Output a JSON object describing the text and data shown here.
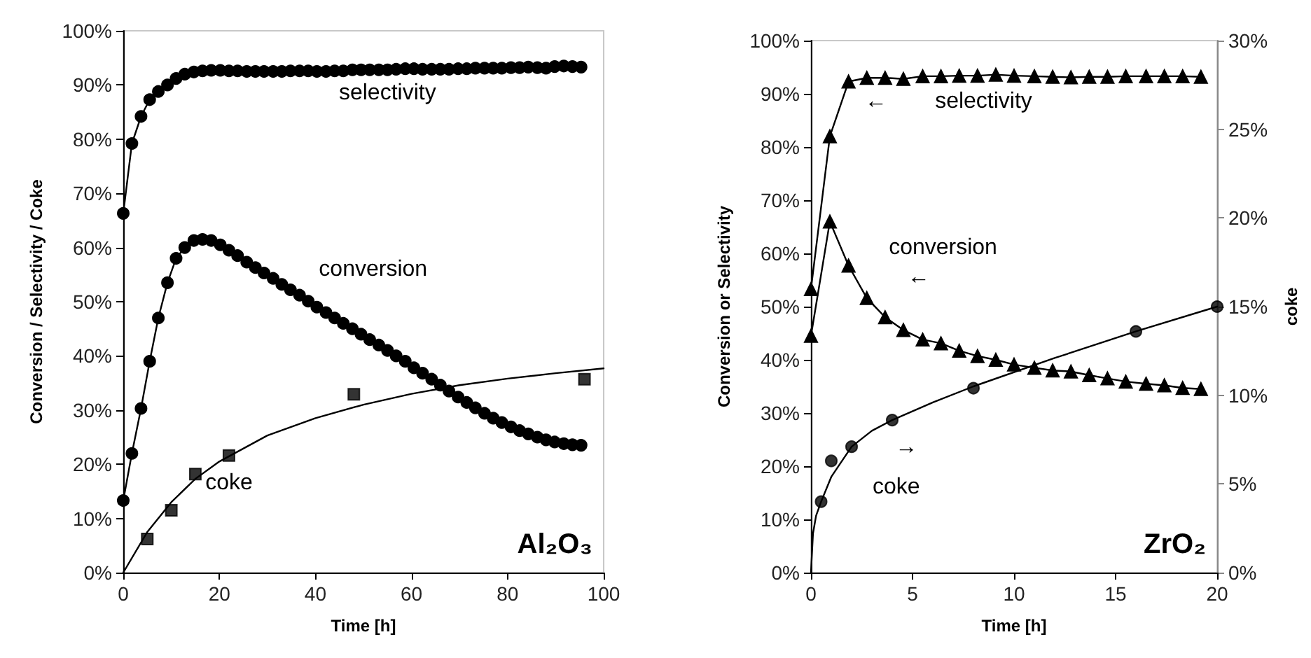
{
  "chart_data": [
    {
      "type": "line",
      "xlabel": "Time [h]",
      "ylabel": "Conversion / Selectivity / Coke",
      "xlim": [
        0,
        100
      ],
      "xticks": [
        0,
        20,
        40,
        60,
        80,
        100
      ],
      "ylim": [
        0,
        100
      ],
      "yticks": [
        {
          "value": 0,
          "label": "0%"
        },
        {
          "value": 10,
          "label": "10%"
        },
        {
          "value": 20,
          "label": "20%"
        },
        {
          "value": 30,
          "label": "30%"
        },
        {
          "value": 40,
          "label": "40%"
        },
        {
          "value": 50,
          "label": "50%"
        },
        {
          "value": 60,
          "label": "60%"
        },
        {
          "value": 70,
          "label": "70%"
        },
        {
          "value": 80,
          "label": "80%"
        },
        {
          "value": 90,
          "label": "90%"
        },
        {
          "value": 100,
          "label": "100%"
        }
      ],
      "grid": false,
      "series": [
        {
          "marker": "circle",
          "color": "#000000",
          "x": [
            0,
            1.8,
            3.7,
            5.5,
            7.3,
            9.2,
            11,
            12.8,
            14.7,
            16.5,
            18.3,
            20.2,
            22,
            23.8,
            25.7,
            27.5,
            29.3,
            31.2,
            33,
            34.8,
            36.7,
            38.5,
            40.3,
            42.2,
            44,
            45.8,
            47.7,
            49.5,
            51.3,
            53.2,
            55,
            56.8,
            58.7,
            60.5,
            62.3,
            64.2,
            66,
            67.8,
            69.7,
            71.5,
            73.3,
            75.2,
            77,
            78.8,
            80.7,
            82.5,
            84.3,
            86.2,
            88,
            89.8,
            91.7,
            93.5,
            95.3
          ],
          "values": [
            66.3,
            79.2,
            84.2,
            87.3,
            88.8,
            90.0,
            91.2,
            92.0,
            92.4,
            92.6,
            92.7,
            92.7,
            92.6,
            92.6,
            92.5,
            92.5,
            92.5,
            92.5,
            92.5,
            92.6,
            92.6,
            92.6,
            92.5,
            92.5,
            92.6,
            92.6,
            92.8,
            92.8,
            92.8,
            92.8,
            92.8,
            92.9,
            93.0,
            93.0,
            92.9,
            92.9,
            92.9,
            92.9,
            93.0,
            93.0,
            93.1,
            93.1,
            93.1,
            93.1,
            93.2,
            93.2,
            93.3,
            93.2,
            93.1,
            93.4,
            93.5,
            93.4,
            93.3
          ]
        },
        {
          "marker": "circle",
          "color": "#000000",
          "x": [
            0,
            1.8,
            3.7,
            5.5,
            7.3,
            9.2,
            11,
            12.8,
            14.7,
            16.5,
            18.3,
            20.2,
            22,
            23.8,
            25.7,
            27.5,
            29.3,
            31.2,
            33,
            34.8,
            36.7,
            38.5,
            40.3,
            42.2,
            44,
            45.8,
            47.7,
            49.5,
            51.3,
            53.2,
            55,
            56.8,
            58.7,
            60.5,
            62.3,
            64.2,
            66,
            67.8,
            69.7,
            71.5,
            73.3,
            75.2,
            77,
            78.8,
            80.7,
            82.5,
            84.3,
            86.2,
            88,
            89.8,
            91.7,
            93.5,
            95.3
          ],
          "values": [
            13.3,
            22,
            30.3,
            39,
            47,
            53.5,
            58,
            60,
            61.3,
            61.5,
            61.3,
            60.5,
            59.5,
            58.5,
            57.3,
            56.3,
            55.3,
            54.3,
            53.2,
            52.2,
            51.2,
            50.1,
            49,
            48,
            47,
            46,
            45,
            44,
            43,
            42,
            41,
            40,
            39,
            37.8,
            36.8,
            35.7,
            34.6,
            33.5,
            32.4,
            31.4,
            30.4,
            29.4,
            28.5,
            27.7,
            26.9,
            26.2,
            25.6,
            25,
            24.5,
            24.1,
            23.8,
            23.6,
            23.5
          ]
        },
        {
          "type": "scatter",
          "marker": "square",
          "color": "#000000",
          "x": [
            5,
            10,
            15,
            22,
            48,
            96
          ],
          "values": [
            6.2,
            11.5,
            18.2,
            21.6,
            32.9,
            35.7
          ]
        },
        {
          "marker": "none",
          "color": "#000000",
          "x": [
            0,
            5,
            10,
            15,
            20,
            30,
            40,
            50,
            60,
            70,
            80,
            90,
            100
          ],
          "values": [
            0,
            7.5,
            13,
            17.3,
            20.5,
            25.3,
            28.5,
            31,
            33,
            34.6,
            35.8,
            36.8,
            37.7
          ]
        }
      ],
      "annotations": [
        "selectivity",
        "conversion",
        "coke",
        "Al₂O₃"
      ]
    },
    {
      "type": "line",
      "xlabel": "Time [h]",
      "ylabel": "Conversion or Selectivity",
      "y2label": "coke",
      "xlim": [
        0,
        20
      ],
      "xticks": [
        0,
        5,
        10,
        15,
        20
      ],
      "ylim": [
        0,
        100
      ],
      "yticks": [
        {
          "value": 0,
          "label": "0%"
        },
        {
          "value": 10,
          "label": "10%"
        },
        {
          "value": 20,
          "label": "20%"
        },
        {
          "value": 30,
          "label": "30%"
        },
        {
          "value": 40,
          "label": "40%"
        },
        {
          "value": 50,
          "label": "50%"
        },
        {
          "value": 60,
          "label": "60%"
        },
        {
          "value": 70,
          "label": "70%"
        },
        {
          "value": 80,
          "label": "80%"
        },
        {
          "value": 90,
          "label": "90%"
        },
        {
          "value": 100,
          "label": "100%"
        }
      ],
      "y2lim": [
        0,
        30
      ],
      "y2ticks": [
        {
          "value": 0,
          "label": "0%"
        },
        {
          "value": 5,
          "label": "5%"
        },
        {
          "value": 10,
          "label": "10%"
        },
        {
          "value": 15,
          "label": "15%"
        },
        {
          "value": 20,
          "label": "20%"
        },
        {
          "value": 25,
          "label": "25%"
        },
        {
          "value": 30,
          "label": "30%"
        }
      ],
      "grid": false,
      "series": [
        {
          "marker": "triangle",
          "color": "#000000",
          "x": [
            0,
            0.93,
            1.85,
            2.75,
            3.65,
            4.55,
            5.5,
            6.4,
            7.3,
            8.2,
            9.1,
            10,
            11,
            11.9,
            12.8,
            13.7,
            14.6,
            15.5,
            16.5,
            17.4,
            18.3,
            19.2
          ],
          "values": [
            53.3,
            82,
            92.3,
            93,
            93,
            92.8,
            93.3,
            93.3,
            93.4,
            93.4,
            93.6,
            93.4,
            93.3,
            93.2,
            93.1,
            93.2,
            93.2,
            93.3,
            93.3,
            93.3,
            93.3,
            93.2
          ]
        },
        {
          "marker": "triangle",
          "color": "#000000",
          "x": [
            0,
            0.93,
            1.85,
            2.75,
            3.65,
            4.55,
            5.5,
            6.4,
            7.3,
            8.2,
            9.1,
            10,
            11,
            11.9,
            12.8,
            13.7,
            14.6,
            15.5,
            16.5,
            17.4,
            18.3,
            19.2
          ],
          "values": [
            44.5,
            66,
            57.7,
            51.6,
            48,
            45.6,
            43.8,
            43.1,
            41.7,
            40.7,
            40,
            39.1,
            38.5,
            38,
            37.8,
            37.1,
            36.5,
            35.9,
            35.5,
            35.2,
            34.7,
            34.5
          ]
        },
        {
          "type": "scatter",
          "marker": "circle",
          "color": "#000000",
          "axis": "y2",
          "x": [
            0.5,
            1,
            2,
            4,
            8,
            16,
            20
          ],
          "values": [
            4.0,
            6.3,
            7.1,
            8.6,
            10.4,
            13.6,
            15.0
          ]
        },
        {
          "marker": "none",
          "color": "#000000",
          "axis": "y2",
          "x": [
            0,
            0.1,
            0.25,
            0.5,
            1,
            2,
            3,
            4,
            6,
            8,
            12,
            16,
            20
          ],
          "values": [
            0,
            2.2,
            3.2,
            4.0,
            5.4,
            7.1,
            8.0,
            8.6,
            9.6,
            10.5,
            12.1,
            13.6,
            15.0
          ]
        }
      ],
      "annotations": [
        "←",
        "selectivity",
        "conversion",
        "←",
        "→",
        "coke",
        "ZrO₂"
      ]
    }
  ]
}
